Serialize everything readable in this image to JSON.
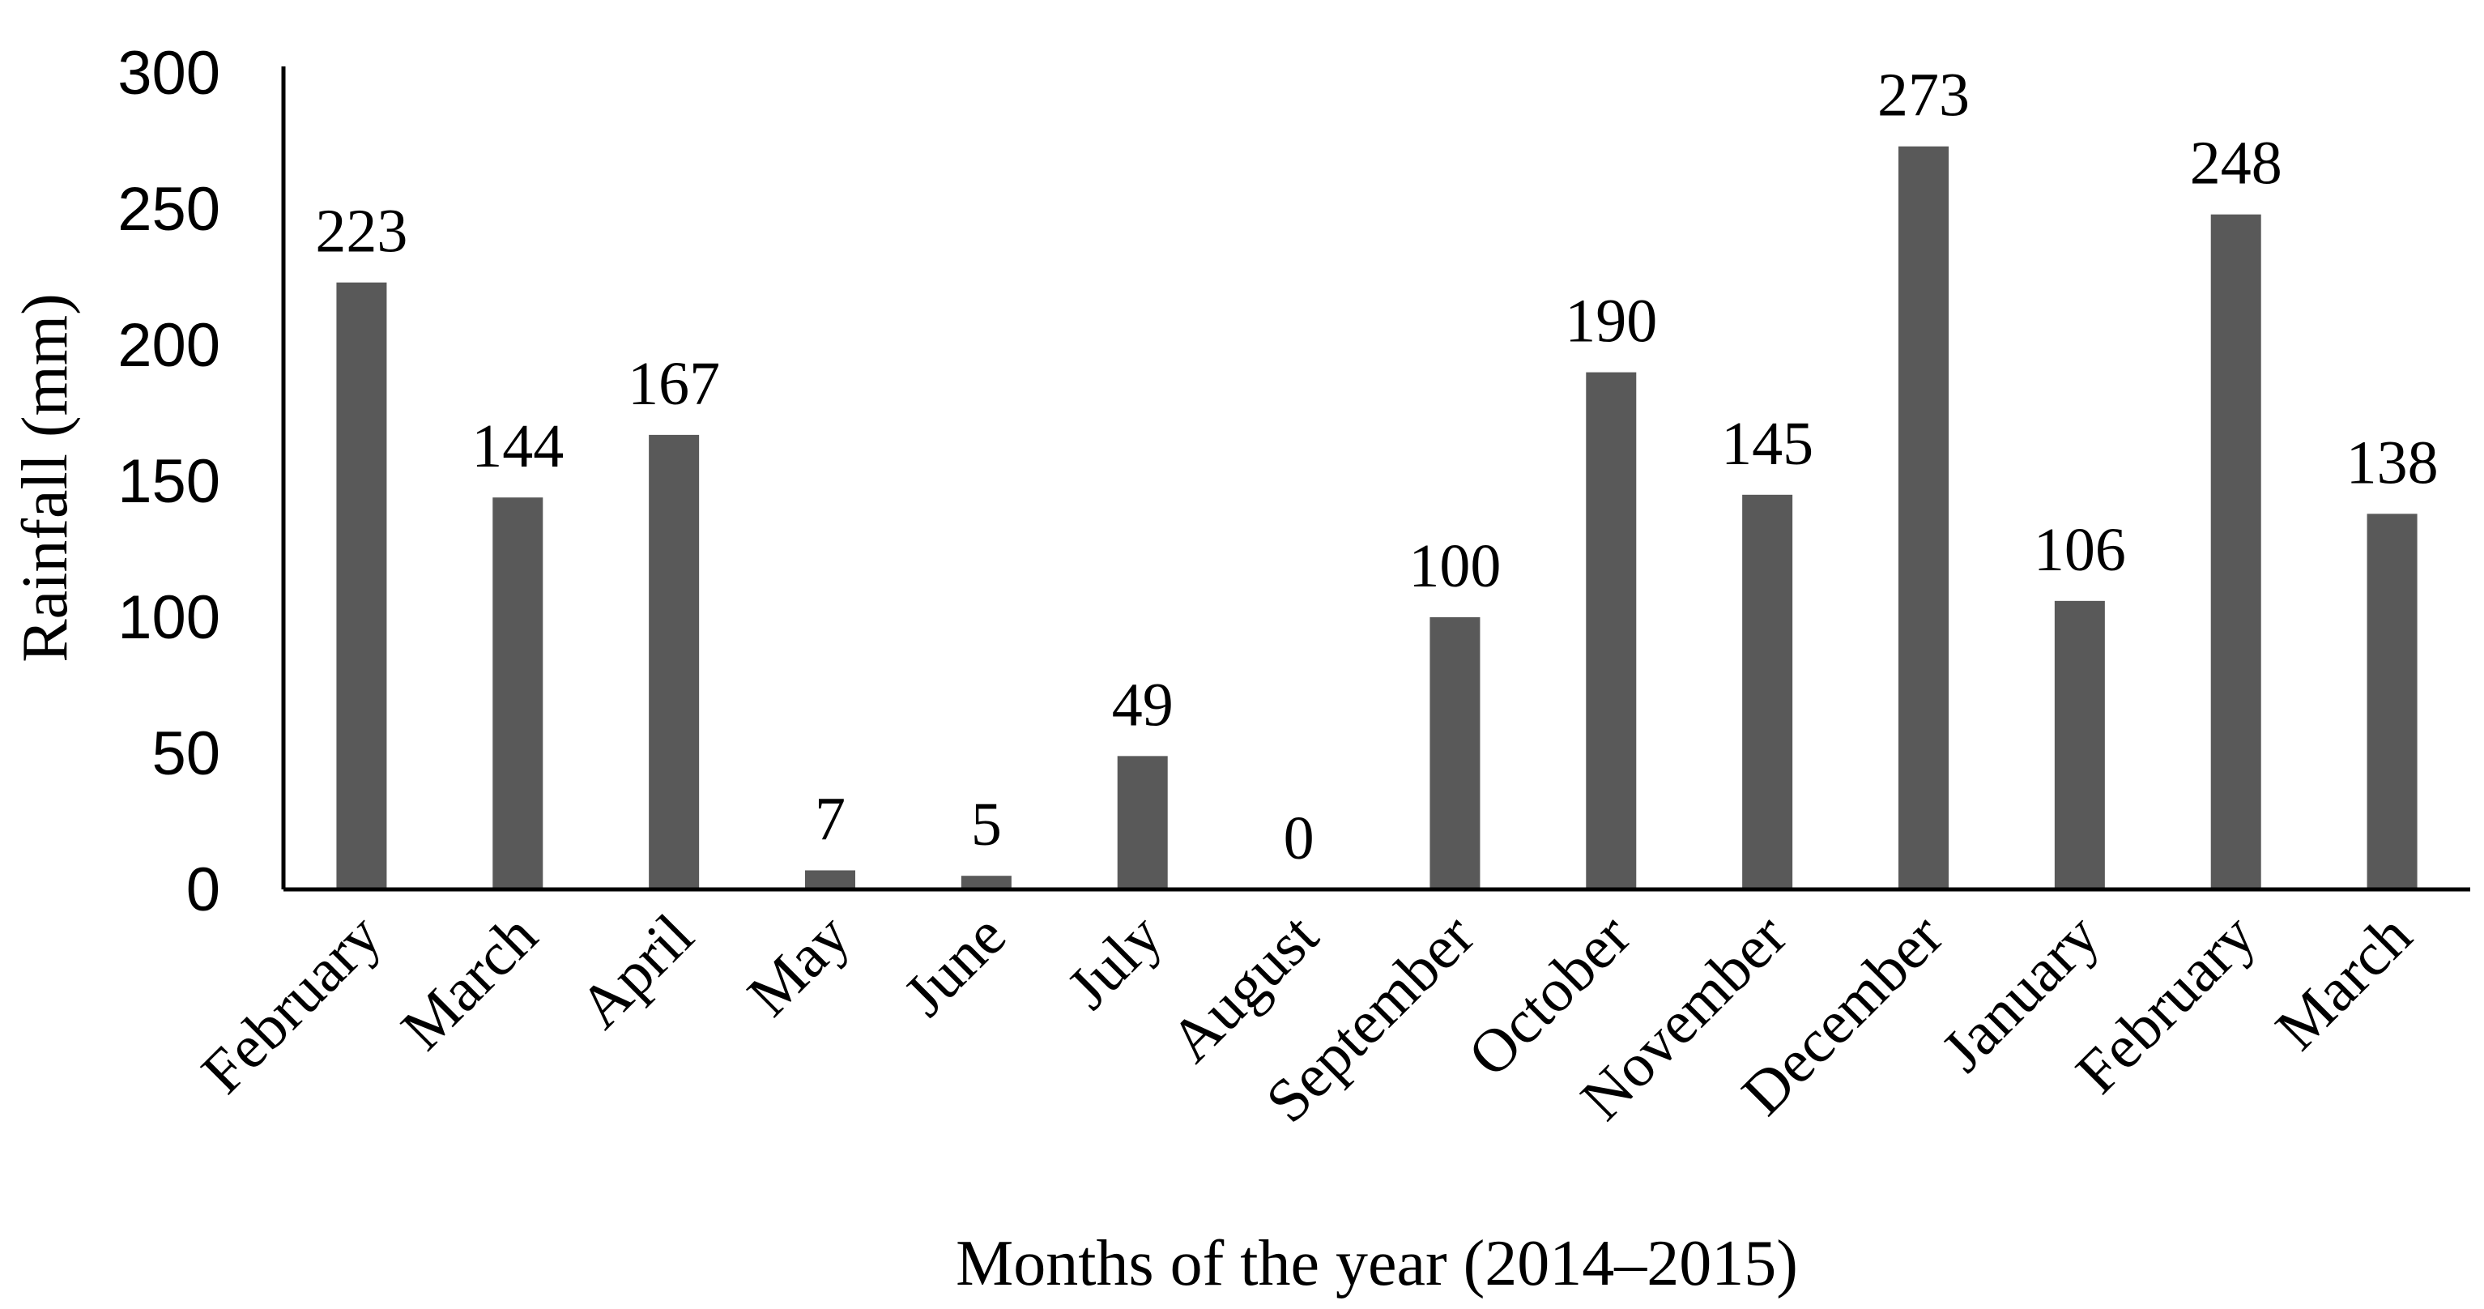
{
  "chart_data": {
    "type": "bar",
    "categories": [
      "February",
      "March",
      "April",
      "May",
      "June",
      "July",
      "August",
      "September",
      "October",
      "November",
      "December",
      "January",
      "February",
      "March"
    ],
    "values": [
      223,
      144,
      167,
      7,
      5,
      49,
      0,
      100,
      190,
      145,
      273,
      106,
      248,
      138
    ],
    "title": "",
    "xlabel": "Months of the year (2014–2015)",
    "ylabel": "Rainfall (mm)",
    "ylim": [
      0,
      300
    ],
    "yticks": [
      0,
      50,
      100,
      150,
      200,
      250,
      300
    ],
    "grid": false,
    "legend": "none",
    "bar_color": "#595959",
    "data_labels": true
  }
}
